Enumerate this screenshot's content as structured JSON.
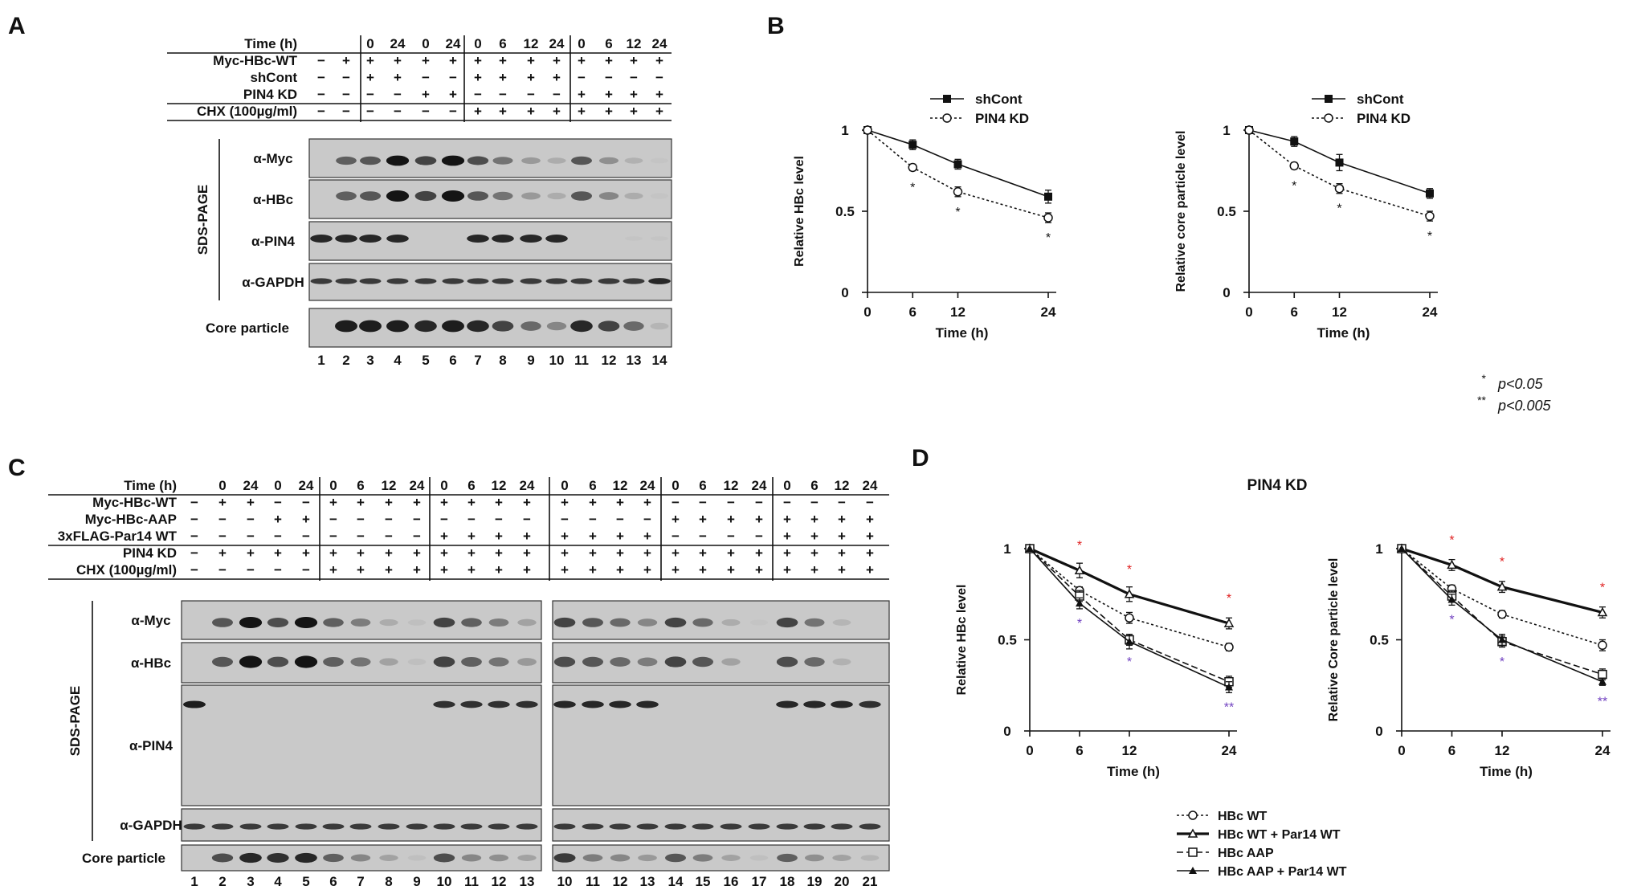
{
  "panels": {
    "A": {
      "letter": "A",
      "row_labels": [
        "Time (h)",
        "Myc-HBc-WT",
        "shCont",
        "PIN4 KD",
        "CHX (100µg/ml)"
      ],
      "rows": [
        [
          "",
          "",
          "0",
          "24",
          "0",
          "24",
          "0",
          "6",
          "12",
          "24",
          "0",
          "6",
          "12",
          "24"
        ],
        [
          "−",
          "+",
          "+",
          "+",
          "+",
          "+",
          "+",
          "+",
          "+",
          "+",
          "+",
          "+",
          "+",
          "+"
        ],
        [
          "−",
          "−",
          "+",
          "+",
          "−",
          "−",
          "+",
          "+",
          "+",
          "+",
          "−",
          "−",
          "−",
          "−"
        ],
        [
          "−",
          "−",
          "−",
          "−",
          "+",
          "+",
          "−",
          "−",
          "−",
          "−",
          "+",
          "+",
          "+",
          "+"
        ],
        [
          "−",
          "−",
          "−",
          "−",
          "−",
          "−",
          "+",
          "+",
          "+",
          "+",
          "+",
          "+",
          "+",
          "+"
        ]
      ],
      "sds_label": "SDS-PAGE",
      "blot_labels": [
        "α-Myc",
        "α-HBc",
        "α-PIN4",
        "α-GAPDH"
      ],
      "core_label": "Core particle",
      "lanes": [
        "1",
        "2",
        "3",
        "4",
        "5",
        "6",
        "7",
        "8",
        "9",
        "10",
        "11",
        "12",
        "13",
        "14"
      ],
      "bands": {
        "myc": [
          0,
          0.55,
          0.6,
          0.95,
          0.7,
          0.95,
          0.65,
          0.45,
          0.25,
          0.15,
          0.6,
          0.3,
          0.12,
          0.02
        ],
        "hbc": [
          0,
          0.55,
          0.6,
          0.95,
          0.7,
          0.95,
          0.6,
          0.45,
          0.25,
          0.15,
          0.6,
          0.35,
          0.15,
          0.02
        ],
        "pin4": [
          0.85,
          0.85,
          0.85,
          0.85,
          0,
          0,
          0.85,
          0.85,
          0.85,
          0.85,
          0,
          0,
          0.02,
          0.02
        ],
        "gapdh": [
          0.75,
          0.75,
          0.75,
          0.75,
          0.75,
          0.75,
          0.75,
          0.75,
          0.75,
          0.75,
          0.75,
          0.75,
          0.75,
          0.85
        ],
        "core": [
          0,
          0.9,
          0.9,
          0.9,
          0.85,
          0.9,
          0.85,
          0.7,
          0.5,
          0.35,
          0.85,
          0.7,
          0.5,
          0.1
        ]
      }
    },
    "B": {
      "letter": "B"
    },
    "C": {
      "letter": "C",
      "row_labels": [
        "Time (h)",
        "Myc-HBc-WT",
        "Myc-HBc-AAP",
        "3xFLAG-Par14 WT",
        "PIN4 KD",
        "CHX (100µg/ml)"
      ],
      "rows": [
        [
          "",
          "0",
          "24",
          "0",
          "24",
          "0",
          "6",
          "12",
          "24",
          "0",
          "6",
          "12",
          "24",
          "0",
          "6",
          "12",
          "24",
          "0",
          "6",
          "12",
          "24",
          "0",
          "6",
          "12",
          "24"
        ],
        [
          "−",
          "+",
          "+",
          "−",
          "−",
          "+",
          "+",
          "+",
          "+",
          "+",
          "+",
          "+",
          "+",
          "+",
          "+",
          "+",
          "+",
          "−",
          "−",
          "−",
          "−",
          "−",
          "−",
          "−",
          "−"
        ],
        [
          "−",
          "−",
          "−",
          "+",
          "+",
          "−",
          "−",
          "−",
          "−",
          "−",
          "−",
          "−",
          "−",
          "−",
          "−",
          "−",
          "−",
          "+",
          "+",
          "+",
          "+",
          "+",
          "+",
          "+",
          "+"
        ],
        [
          "−",
          "−",
          "−",
          "−",
          "−",
          "−",
          "−",
          "−",
          "−",
          "+",
          "+",
          "+",
          "+",
          "+",
          "+",
          "+",
          "+",
          "−",
          "−",
          "−",
          "−",
          "+",
          "+",
          "+",
          "+"
        ],
        [
          "−",
          "+",
          "+",
          "+",
          "+",
          "+",
          "+",
          "+",
          "+",
          "+",
          "+",
          "+",
          "+",
          "+",
          "+",
          "+",
          "+",
          "+",
          "+",
          "+",
          "+",
          "+",
          "+",
          "+",
          "+"
        ],
        [
          "−",
          "−",
          "−",
          "−",
          "−",
          "+",
          "+",
          "+",
          "+",
          "+",
          "+",
          "+",
          "+",
          "+",
          "+",
          "+",
          "+",
          "+",
          "+",
          "+",
          "+",
          "+",
          "+",
          "+",
          "+"
        ]
      ],
      "sds_label": "SDS-PAGE",
      "blot_labels": [
        "α-Myc",
        "α-HBc",
        "α-PIN4",
        "α-GAPDH"
      ],
      "core_label": "Core particle",
      "lanes": [
        "1",
        "2",
        "3",
        "4",
        "5",
        "6",
        "7",
        "8",
        "9",
        "10",
        "11",
        "12",
        "13",
        "10",
        "11",
        "12",
        "13",
        "14",
        "15",
        "16",
        "17",
        "18",
        "19",
        "20",
        "21"
      ],
      "bands": {
        "myc": [
          0,
          0.6,
          0.95,
          0.65,
          0.95,
          0.55,
          0.4,
          0.15,
          0.05,
          0.7,
          0.55,
          0.4,
          0.2,
          0.7,
          0.6,
          0.5,
          0.35,
          0.7,
          0.5,
          0.15,
          0.02,
          0.7,
          0.45,
          0.1,
          0
        ],
        "hbc": [
          0,
          0.6,
          0.95,
          0.65,
          0.95,
          0.55,
          0.45,
          0.2,
          0.05,
          0.7,
          0.55,
          0.45,
          0.25,
          0.65,
          0.6,
          0.5,
          0.4,
          0.7,
          0.6,
          0.2,
          0,
          0.65,
          0.5,
          0.12,
          0
        ],
        "pin4": [
          0.9,
          0,
          0,
          0,
          0,
          0,
          0,
          0,
          0,
          0.8,
          0.8,
          0.8,
          0.8,
          0.85,
          0.85,
          0.85,
          0.85,
          0,
          0,
          0,
          0,
          0.85,
          0.85,
          0.85,
          0.8
        ],
        "gapdh": [
          0.75,
          0.75,
          0.75,
          0.75,
          0.75,
          0.75,
          0.75,
          0.75,
          0.75,
          0.75,
          0.75,
          0.75,
          0.75,
          0.75,
          0.75,
          0.75,
          0.75,
          0.75,
          0.75,
          0.75,
          0.75,
          0.75,
          0.75,
          0.75,
          0.75
        ],
        "core": [
          0,
          0.65,
          0.85,
          0.8,
          0.85,
          0.55,
          0.35,
          0.2,
          0.05,
          0.65,
          0.35,
          0.3,
          0.2,
          0.75,
          0.4,
          0.35,
          0.25,
          0.6,
          0.4,
          0.2,
          0.05,
          0.55,
          0.3,
          0.2,
          0.1
        ]
      }
    },
    "D": {
      "letter": "D",
      "title": "PIN4 KD"
    }
  },
  "significance_legend": [
    {
      "stars": "*",
      "text": "p<0.05"
    },
    {
      "stars": "**",
      "text": "p<0.005"
    }
  ],
  "chart_data": [
    {
      "type": "line",
      "xlabel": "Time (h)",
      "ylabel": "Relative HBc level",
      "x": [
        0,
        6,
        12,
        24
      ],
      "ylim": [
        0,
        1
      ],
      "yticks": [
        "0",
        "0.5",
        "1"
      ],
      "series": [
        {
          "name": "shCont",
          "values": [
            1.0,
            0.91,
            0.79,
            0.59
          ],
          "err": [
            0,
            0.03,
            0.03,
            0.04
          ],
          "marker": "filled-square",
          "line": "solid"
        },
        {
          "name": "PIN4 KD",
          "values": [
            1.0,
            0.77,
            0.62,
            0.46
          ],
          "err": [
            0,
            0.02,
            0.03,
            0.03
          ],
          "marker": "open-circle",
          "line": "dotted"
        }
      ],
      "legend": "top",
      "annotations": [
        {
          "x": 6,
          "text": "*"
        },
        {
          "x": 12,
          "text": "*"
        },
        {
          "x": 24,
          "text": "*"
        }
      ]
    },
    {
      "type": "line",
      "xlabel": "Time (h)",
      "ylabel": "Relative core particle level",
      "x": [
        0,
        6,
        12,
        24
      ],
      "ylim": [
        0,
        1
      ],
      "yticks": [
        "0",
        "0.5",
        "1"
      ],
      "series": [
        {
          "name": "shCont",
          "values": [
            1.0,
            0.93,
            0.8,
            0.61
          ],
          "err": [
            0,
            0.03,
            0.05,
            0.03
          ],
          "marker": "filled-square",
          "line": "solid"
        },
        {
          "name": "PIN4 KD",
          "values": [
            1.0,
            0.78,
            0.64,
            0.47
          ],
          "err": [
            0,
            0.02,
            0.03,
            0.03
          ],
          "marker": "open-circle",
          "line": "dotted"
        }
      ],
      "legend": "top",
      "annotations": [
        {
          "x": 6,
          "text": "*"
        },
        {
          "x": 12,
          "text": "*"
        },
        {
          "x": 24,
          "text": "*"
        }
      ]
    },
    {
      "type": "line",
      "title": "PIN4 KD",
      "xlabel": "Time (h)",
      "ylabel": "Relative HBc level",
      "x": [
        0,
        6,
        12,
        24
      ],
      "ylim": [
        0,
        1
      ],
      "yticks": [
        "0",
        "0.5",
        "1"
      ],
      "series": [
        {
          "name": "HBc WT",
          "values": [
            1.0,
            0.77,
            0.62,
            0.46
          ],
          "err": [
            0,
            0.02,
            0.03,
            0.02
          ],
          "marker": "open-circle",
          "line": "dotted"
        },
        {
          "name": "HBc WT + Par14 WT",
          "values": [
            1.0,
            0.88,
            0.75,
            0.59
          ],
          "err": [
            0,
            0.04,
            0.04,
            0.03
          ],
          "marker": "open-triangle",
          "line": "bold-solid"
        },
        {
          "name": "HBc AAP",
          "values": [
            1.0,
            0.74,
            0.5,
            0.27
          ],
          "err": [
            0,
            0.03,
            0.03,
            0.03
          ],
          "marker": "open-square",
          "line": "dashed"
        },
        {
          "name": "HBc AAP + Par14 WT",
          "values": [
            1.0,
            0.7,
            0.49,
            0.24
          ],
          "err": [
            0,
            0.03,
            0.04,
            0.03
          ],
          "marker": "filled-triangle",
          "line": "solid"
        }
      ],
      "legend": "bottom",
      "annotations": [
        {
          "x": 6,
          "text": "*",
          "color": "#e02020",
          "pos": "above"
        },
        {
          "x": 12,
          "text": "*",
          "color": "#e02020",
          "pos": "above"
        },
        {
          "x": 24,
          "text": "*",
          "color": "#e02020",
          "pos": "above"
        },
        {
          "x": 6,
          "text": "*",
          "color": "#7040c0",
          "pos": "below"
        },
        {
          "x": 12,
          "text": "*",
          "color": "#7040c0",
          "pos": "below"
        },
        {
          "x": 24,
          "text": "**",
          "color": "#7040c0",
          "pos": "below"
        }
      ]
    },
    {
      "type": "line",
      "title": "PIN4 KD",
      "xlabel": "Time (h)",
      "ylabel": "Relative Core particle level",
      "x": [
        0,
        6,
        12,
        24
      ],
      "ylim": [
        0,
        1
      ],
      "yticks": [
        "0",
        "0.5",
        "1"
      ],
      "series": [
        {
          "name": "HBc WT",
          "values": [
            1.0,
            0.78,
            0.64,
            0.47
          ],
          "err": [
            0,
            0.02,
            0.02,
            0.03
          ],
          "marker": "open-circle",
          "line": "dotted"
        },
        {
          "name": "HBc WT + Par14 WT",
          "values": [
            1.0,
            0.91,
            0.79,
            0.65
          ],
          "err": [
            0,
            0.03,
            0.03,
            0.03
          ],
          "marker": "open-triangle",
          "line": "bold-solid"
        },
        {
          "name": "HBc AAP",
          "values": [
            1.0,
            0.74,
            0.49,
            0.31
          ],
          "err": [
            0,
            0.03,
            0.03,
            0.03
          ],
          "marker": "open-square",
          "line": "dashed"
        },
        {
          "name": "HBc AAP + Par14 WT",
          "values": [
            1.0,
            0.72,
            0.5,
            0.27
          ],
          "err": [
            0,
            0.03,
            0.03,
            0.02
          ],
          "marker": "filled-triangle",
          "line": "solid"
        }
      ],
      "legend": "bottom",
      "annotations": [
        {
          "x": 6,
          "text": "*",
          "color": "#e02020",
          "pos": "above"
        },
        {
          "x": 12,
          "text": "*",
          "color": "#e02020",
          "pos": "above"
        },
        {
          "x": 24,
          "text": "*",
          "color": "#e02020",
          "pos": "above"
        },
        {
          "x": 6,
          "text": "*",
          "color": "#7040c0",
          "pos": "below"
        },
        {
          "x": 12,
          "text": "*",
          "color": "#7040c0",
          "pos": "below"
        },
        {
          "x": 24,
          "text": "**",
          "color": "#7040c0",
          "pos": "below"
        }
      ]
    }
  ]
}
